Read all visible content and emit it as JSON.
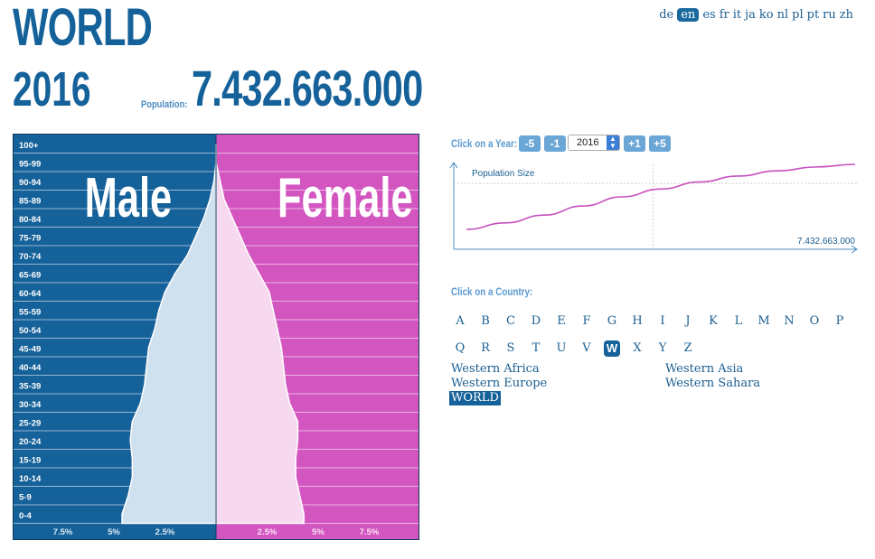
{
  "header": {
    "country": "WORLD",
    "year": "2016",
    "population_label": "Population:",
    "population_value": "7.432.663.000"
  },
  "languages": {
    "items": [
      "de",
      "en",
      "es",
      "fr",
      "it",
      "ja",
      "ko",
      "nl",
      "pl",
      "pt",
      "ru",
      "zh"
    ],
    "active": "en"
  },
  "colors": {
    "male": "#15619a",
    "female": "#d355c0",
    "male_fill": "#cfe0ee",
    "female_fill": "#f6d9ef",
    "accent": "#15619a",
    "button": "#6aa6d6",
    "trend_line": "#c64fbf"
  },
  "pyramid": {
    "male_label": "Male",
    "female_label": "Female",
    "age_groups": [
      "100+",
      "95-99",
      "90-94",
      "85-89",
      "80-84",
      "75-79",
      "70-74",
      "65-69",
      "60-64",
      "55-59",
      "50-54",
      "45-49",
      "40-44",
      "35-39",
      "30-34",
      "25-29",
      "20-24",
      "15-19",
      "10-14",
      "5-9",
      "0-4"
    ],
    "axis_ticks": {
      "male": [
        "7.5%",
        "5%",
        "2.5%"
      ],
      "female": [
        "2.5%",
        "5%",
        "7.5%"
      ]
    }
  },
  "chart_data": {
    "type": "bar",
    "title": "",
    "categories": [
      "100+",
      "95-99",
      "90-94",
      "85-89",
      "80-84",
      "75-79",
      "70-74",
      "65-69",
      "60-64",
      "55-59",
      "50-54",
      "45-49",
      "40-44",
      "35-39",
      "30-34",
      "25-29",
      "20-24",
      "15-19",
      "10-14",
      "5-9",
      "0-4"
    ],
    "series": [
      {
        "name": "Male",
        "values": [
          0.0,
          0.0,
          0.1,
          0.3,
          0.6,
          1.0,
          1.4,
          2.0,
          2.5,
          2.8,
          3.0,
          3.3,
          3.4,
          3.5,
          3.7,
          4.1,
          4.2,
          4.1,
          4.1,
          4.3,
          4.6
        ]
      },
      {
        "name": "Female",
        "values": [
          0.0,
          0.0,
          0.2,
          0.4,
          0.8,
          1.2,
          1.6,
          2.1,
          2.6,
          2.8,
          3.0,
          3.2,
          3.3,
          3.4,
          3.6,
          4.0,
          4.0,
          3.9,
          3.9,
          4.1,
          4.3
        ]
      }
    ],
    "xlim": [
      0,
      10
    ],
    "x_unit": "%"
  },
  "year_controls": {
    "label": "Click on a Year:",
    "buttons": [
      "-5",
      "-1",
      "+1",
      "+5"
    ],
    "selected_year": "2016"
  },
  "trend": {
    "label": "Population Size",
    "value_label": "7.432.663.000",
    "points": [
      0.0,
      0.1,
      0.22,
      0.36,
      0.5,
      0.62,
      0.73,
      0.82,
      0.9,
      0.96,
      1.0
    ],
    "marker_fraction": 0.48
  },
  "country_picker": {
    "label": "Click on a Country:",
    "letters": [
      "A",
      "B",
      "C",
      "D",
      "E",
      "F",
      "G",
      "H",
      "I",
      "J",
      "K",
      "L",
      "M",
      "N",
      "O",
      "P",
      "Q",
      "R",
      "S",
      "T",
      "U",
      "V",
      "W",
      "X",
      "Y",
      "Z"
    ],
    "active_letter": "W",
    "countries": [
      "Western Africa",
      "Western Asia",
      "Western Europe",
      "Western Sahara",
      "WORLD"
    ],
    "active_country": "WORLD"
  }
}
